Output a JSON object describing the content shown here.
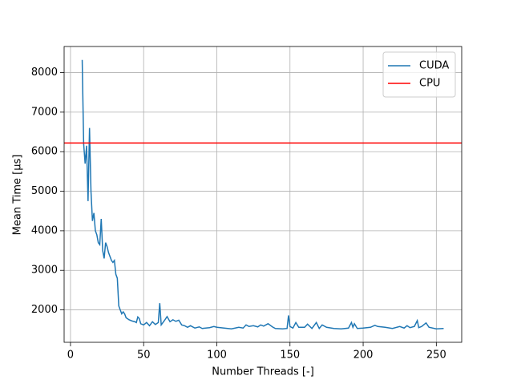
{
  "chart_data": {
    "type": "line",
    "xlabel": "Number Threads [-]",
    "ylabel": "Mean Time [µs]",
    "xlim": [
      -4.35,
      267.35
    ],
    "ylim": [
      1180,
      8660
    ],
    "xticks": [
      0,
      50,
      100,
      150,
      200,
      250
    ],
    "yticks": [
      2000,
      3000,
      4000,
      5000,
      6000,
      7000,
      8000
    ],
    "grid": true,
    "legend": "upper right",
    "series": [
      {
        "name": "CUDA",
        "color": "#1f77b4",
        "x": [
          8,
          9,
          10,
          11,
          12,
          13,
          14,
          15,
          16,
          17,
          18,
          19,
          20,
          21,
          22,
          23,
          24,
          25,
          26,
          27,
          28,
          29,
          30,
          31,
          32,
          33,
          34,
          35,
          36,
          37,
          38,
          40,
          42,
          44,
          45,
          46,
          47,
          48,
          50,
          52,
          54,
          56,
          58,
          60,
          61,
          62,
          64,
          66,
          68,
          70,
          72,
          74,
          76,
          78,
          80,
          82,
          85,
          88,
          90,
          95,
          98,
          100,
          105,
          110,
          115,
          118,
          120,
          122,
          125,
          128,
          130,
          132,
          135,
          138,
          140,
          145,
          148,
          149,
          150,
          152,
          154,
          156,
          160,
          162,
          165,
          168,
          170,
          172,
          175,
          180,
          185,
          190,
          192,
          193,
          194,
          196,
          200,
          205,
          208,
          210,
          215,
          220,
          225,
          228,
          230,
          232,
          235,
          237,
          238,
          240,
          243,
          245,
          250,
          255
        ],
        "values": [
          8320,
          6200,
          5700,
          6150,
          4750,
          6600,
          5000,
          4250,
          4450,
          4000,
          3900,
          3700,
          3650,
          4300,
          3500,
          3300,
          3700,
          3600,
          3450,
          3350,
          3250,
          3200,
          3250,
          2900,
          2800,
          2100,
          2000,
          1900,
          1950,
          1900,
          1800,
          1750,
          1720,
          1700,
          1680,
          1820,
          1780,
          1650,
          1620,
          1680,
          1600,
          1700,
          1630,
          1680,
          2170,
          1620,
          1720,
          1830,
          1700,
          1750,
          1710,
          1740,
          1620,
          1600,
          1560,
          1600,
          1540,
          1570,
          1530,
          1550,
          1580,
          1560,
          1540,
          1520,
          1560,
          1540,
          1620,
          1580,
          1600,
          1570,
          1620,
          1590,
          1650,
          1570,
          1530,
          1520,
          1530,
          1860,
          1580,
          1540,
          1680,
          1560,
          1560,
          1640,
          1530,
          1680,
          1530,
          1620,
          1560,
          1530,
          1520,
          1540,
          1680,
          1560,
          1650,
          1530,
          1540,
          1560,
          1610,
          1580,
          1560,
          1530,
          1580,
          1540,
          1600,
          1550,
          1580,
          1730,
          1550,
          1580,
          1670,
          1560,
          1520,
          1530
        ]
      },
      {
        "name": "CPU",
        "color": "#ff0000",
        "y": 6220
      }
    ]
  }
}
